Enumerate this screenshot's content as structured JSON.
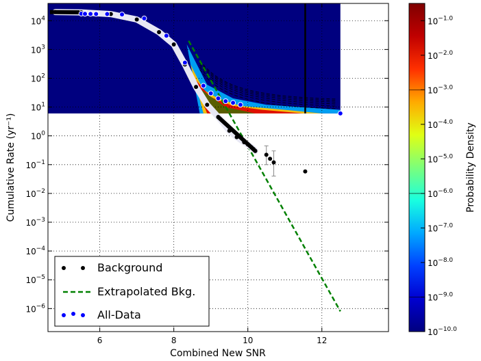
{
  "chart_data": {
    "type": "scatter",
    "xlabel": "Combined New SNR",
    "ylabel": "Cumulative Rate (yr⁻¹)",
    "xlim": [
      4.6,
      13.8
    ],
    "ylim_log10": [
      -6.8,
      4.6
    ],
    "yscale": "log",
    "grid": true,
    "x_ticks": [
      "6",
      "8",
      "10",
      "12"
    ],
    "y_ticks": [
      {
        "exp": 4,
        "label": "10",
        "sup": "4"
      },
      {
        "exp": 3,
        "label": "10",
        "sup": "3"
      },
      {
        "exp": 2,
        "label": "10",
        "sup": "2"
      },
      {
        "exp": 1,
        "label": "10",
        "sup": "1"
      },
      {
        "exp": 0,
        "label": "10",
        "sup": "0"
      },
      {
        "exp": -1,
        "label": "10",
        "sup": "−1"
      },
      {
        "exp": -2,
        "label": "10",
        "sup": "−2"
      },
      {
        "exp": -3,
        "label": "10",
        "sup": "−3"
      },
      {
        "exp": -4,
        "label": "10",
        "sup": "−4"
      },
      {
        "exp": -5,
        "label": "10",
        "sup": "−5"
      },
      {
        "exp": -6,
        "label": "10",
        "sup": "−6"
      }
    ],
    "legend": {
      "placement": "lower-left",
      "entries": [
        {
          "label": "Background",
          "color": "#000000",
          "style": "dots"
        },
        {
          "label": "Extrapolated Bkg.",
          "color": "#008000",
          "style": "dashed"
        },
        {
          "label": "All-Data",
          "color": "#0000ff",
          "style": "dots"
        }
      ]
    },
    "series": [
      {
        "name": "Background",
        "color": "#000000",
        "x": [
          4.8,
          5.5,
          6.3,
          7.0,
          7.6,
          8.0,
          8.3,
          8.6,
          8.9,
          9.2,
          9.5,
          9.7,
          9.9,
          10.0,
          10.1,
          10.15,
          10.2,
          10.5,
          10.6,
          10.7,
          11.55
        ],
        "y": [
          20000,
          19500,
          17000,
          11000,
          4000,
          1500,
          300,
          50,
          12,
          4.5,
          1.5,
          0.9,
          0.6,
          0.5,
          0.4,
          0.35,
          0.3,
          0.22,
          0.16,
          0.12,
          0.058
        ]
      },
      {
        "name": "All-Data",
        "color": "#0000ff",
        "x": [
          5.5,
          5.6,
          5.75,
          5.9,
          6.2,
          6.6,
          7.2,
          7.8,
          8.3,
          8.8,
          9.0,
          9.2,
          9.4,
          9.6,
          9.8,
          12.5
        ],
        "y": [
          17500,
          17300,
          17200,
          17100,
          17000,
          16500,
          12000,
          3000,
          350,
          55,
          30,
          20,
          16,
          14,
          12,
          6
        ]
      },
      {
        "name": "Extrapolated Bkg.",
        "color": "#008000",
        "x": [
          8.4,
          12.5
        ],
        "y": [
          2000,
          8e-07
        ]
      }
    ],
    "error_bars": [
      {
        "x": 10.5,
        "low": 0.1,
        "high": 0.45
      },
      {
        "x": 10.7,
        "low": 0.04,
        "high": 0.3
      }
    ],
    "vertical_line_x": 11.55,
    "colorbar": {
      "label": "Probability Density",
      "exp_range": [
        -10.0,
        -0.5
      ],
      "ticks": [
        "−1.0",
        "−2.0",
        "−3.0",
        "−4.0",
        "−5.0",
        "−6.0",
        "−7.0",
        "−8.0",
        "−9.0",
        "−10.0"
      ],
      "tick_base": "10",
      "colors": [
        "#00007f",
        "#0000d0",
        "#0040ff",
        "#00a8ff",
        "#19ffe0",
        "#7cff7a",
        "#e0ff14",
        "#ffaa00",
        "#ff3000",
        "#c00000",
        "#7f0000"
      ]
    }
  }
}
